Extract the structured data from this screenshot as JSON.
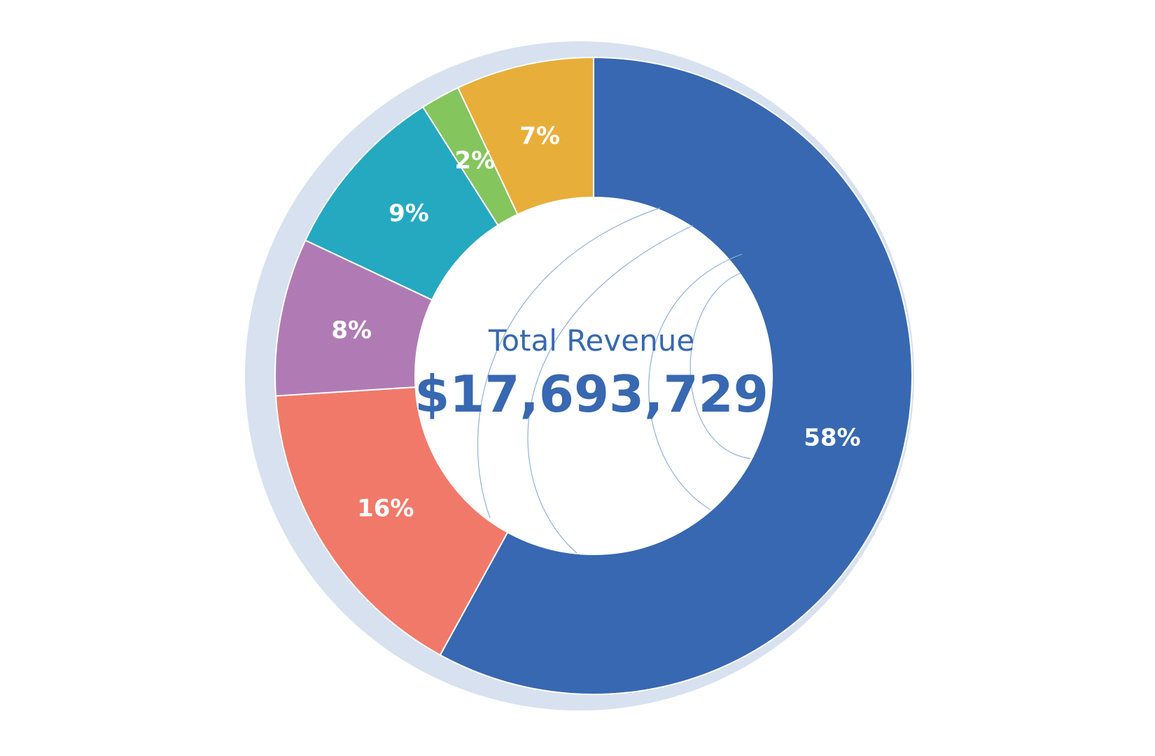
{
  "chart_data": {
    "type": "pie",
    "style": "donut",
    "center_title": "Total Revenue",
    "center_value": "$17,693,729",
    "slices": [
      {
        "label": "58%",
        "value": 58,
        "color": "#3768b1"
      },
      {
        "label": "16%",
        "value": 16,
        "color": "#f17969"
      },
      {
        "label": "8%",
        "value": 8,
        "color": "#b07bb4"
      },
      {
        "label": "9%",
        "value": 9,
        "color": "#24a9c1"
      },
      {
        "label": "2%",
        "value": 2,
        "color": "#84c55e"
      },
      {
        "label": "7%",
        "value": 7,
        "color": "#e8ae3a"
      }
    ],
    "start_angle": "top",
    "direction": "clockwise",
    "legend": "none"
  },
  "colors": {
    "outer_ring": "#d8e1ef",
    "center_fill": "#ffffff",
    "decor_lines": "#8fb1de"
  }
}
